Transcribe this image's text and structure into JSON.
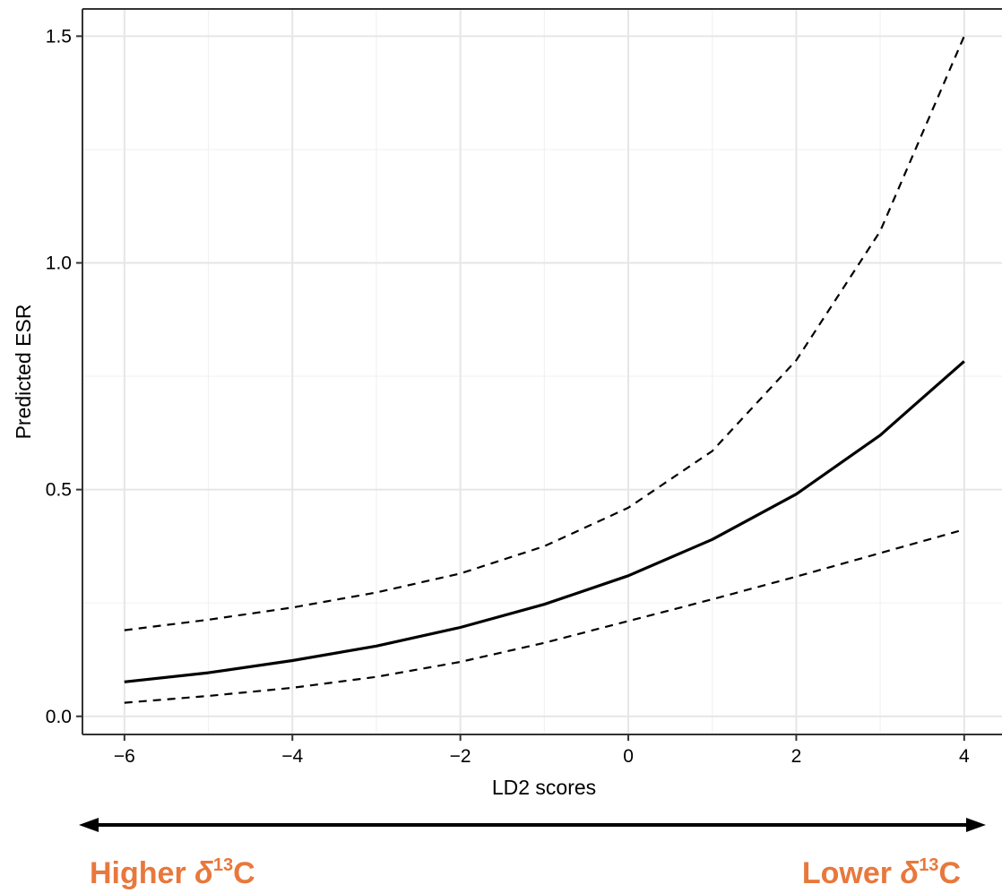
{
  "chart_data": {
    "type": "line",
    "xlabel": "LD2 scores",
    "ylabel": "Predicted ESR",
    "xlim": [
      -6.5,
      4.45
    ],
    "ylim": [
      -0.04,
      1.56
    ],
    "x_ticks": [
      -6,
      -4,
      -2,
      0,
      2,
      4
    ],
    "x_tick_labels": [
      "−6",
      "−4",
      "−2",
      "0",
      "2",
      "4"
    ],
    "y_ticks": [
      0.0,
      0.5,
      1.0,
      1.5
    ],
    "y_tick_labels": [
      "0.0",
      "0.5",
      "1.0",
      "1.5"
    ],
    "grid": true,
    "x": [
      -6,
      -5,
      -4,
      -3,
      -2,
      -1,
      0,
      1,
      2,
      3,
      4
    ],
    "series": [
      {
        "role": "fit",
        "line_style": "solid",
        "color": "#000000",
        "values": [
          0.076,
          0.096,
          0.123,
          0.155,
          0.196,
          0.247,
          0.31,
          0.39,
          0.49,
          0.62,
          0.783
        ]
      },
      {
        "role": "upper",
        "line_style": "dashed",
        "color": "#000000",
        "values": [
          0.19,
          0.213,
          0.24,
          0.273,
          0.315,
          0.375,
          0.46,
          0.585,
          0.785,
          1.07,
          1.5
        ]
      },
      {
        "role": "lower",
        "line_style": "dashed",
        "color": "#000000",
        "values": [
          0.03,
          0.045,
          0.063,
          0.087,
          0.12,
          0.162,
          0.21,
          0.258,
          0.308,
          0.36,
          0.412
        ]
      }
    ]
  },
  "annotations": {
    "color": "#E8783C",
    "left": {
      "prefix": "Higher ",
      "symbol": "δ",
      "superscript": "13",
      "suffix": "C"
    },
    "right": {
      "prefix": "Lower ",
      "symbol": "δ",
      "superscript": "13",
      "suffix": "C"
    }
  }
}
